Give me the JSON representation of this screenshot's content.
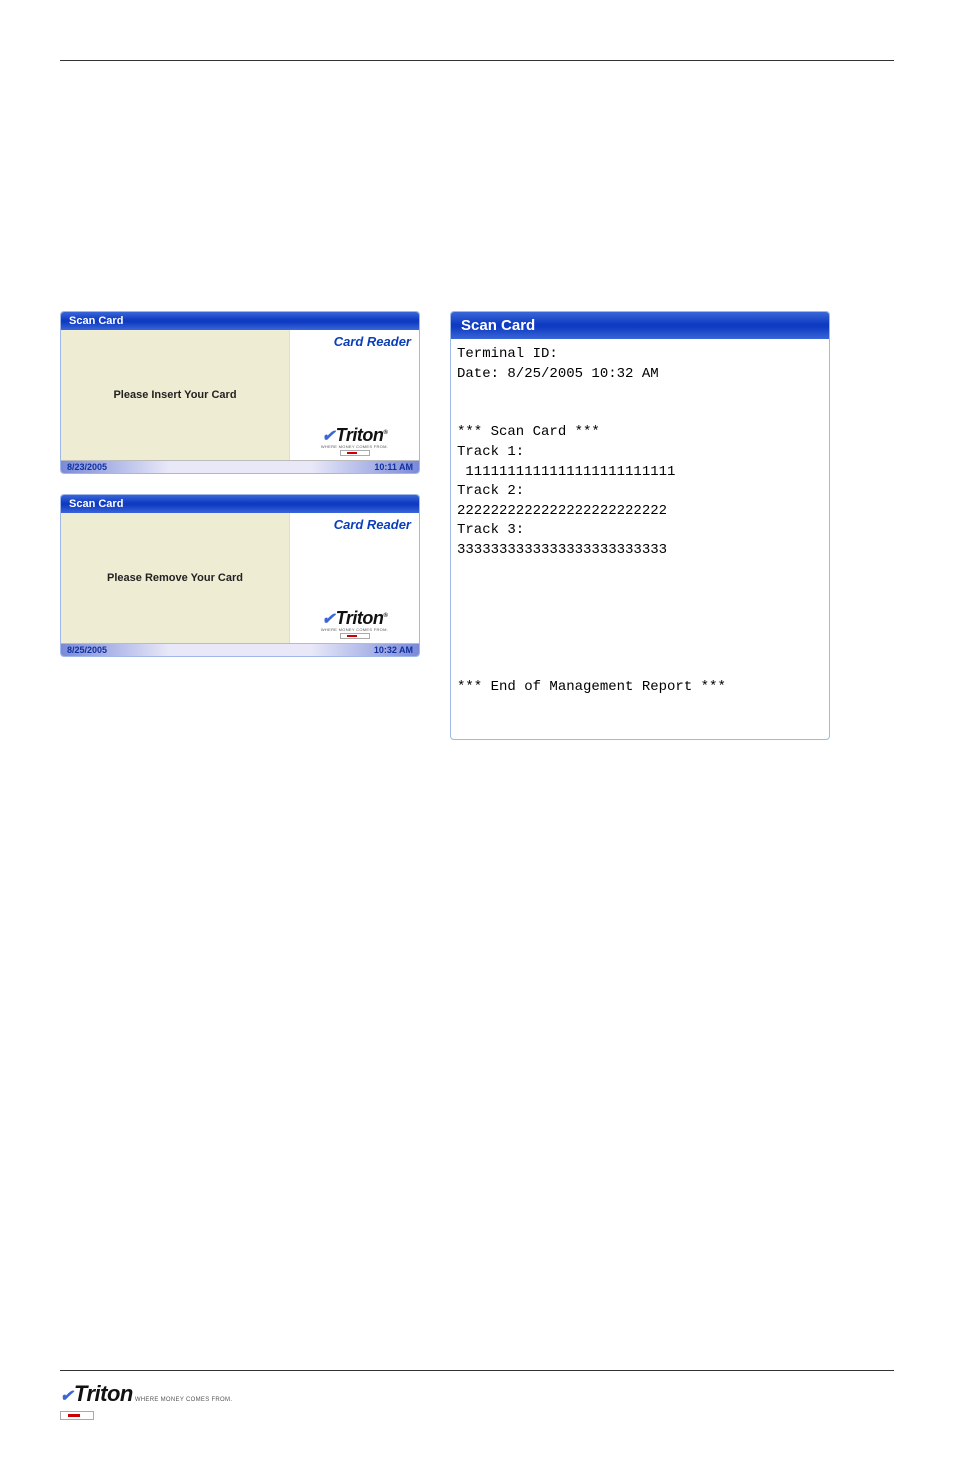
{
  "colors": {
    "title_gradient_mid": "#0e3bc2",
    "title_gradient_edge": "#3a66d8",
    "beige_panel": "#efecd4",
    "link_blue": "#0b3fb8",
    "status_text": "#1030a0",
    "rule": "#333333"
  },
  "fonts": {
    "ui": "Arial, sans-serif",
    "mono": "Courier New, monospace",
    "title_bar_size_small": 11,
    "title_bar_size_report": 15,
    "mono_size": 14
  },
  "scan_insert": {
    "title": "Scan Card",
    "main_text": "Please Insert Your Card",
    "reader_label": "Card Reader",
    "logo": {
      "brand": "Triton",
      "tagline": "WHERE MONEY COMES FROM."
    },
    "status_date": "8/23/2005",
    "status_time": "10:11 AM"
  },
  "scan_remove": {
    "title": "Scan Card",
    "main_text": "Please Remove Your Card",
    "reader_label": "Card Reader",
    "logo": {
      "brand": "Triton",
      "tagline": "WHERE MONEY COMES FROM."
    },
    "status_date": "8/25/2005",
    "status_time": "10:32 AM"
  },
  "report": {
    "title": "Scan Card",
    "lines": {
      "terminal_id_label": "Terminal ID:",
      "date_line": "Date: 8/25/2005 10:32 AM",
      "heading": "*** Scan Card ***",
      "track1_label": "Track 1:",
      "track1_value": " 1111111111111111111111111",
      "track2_label": "Track 2:",
      "track2_value": "2222222222222222222222222",
      "track3_label": "Track 3:",
      "track3_value": "3333333333333333333333333",
      "footer": "*** End of Management Report ***"
    }
  },
  "footer_logo": {
    "brand": "Triton",
    "tagline": "WHERE MONEY COMES FROM."
  }
}
